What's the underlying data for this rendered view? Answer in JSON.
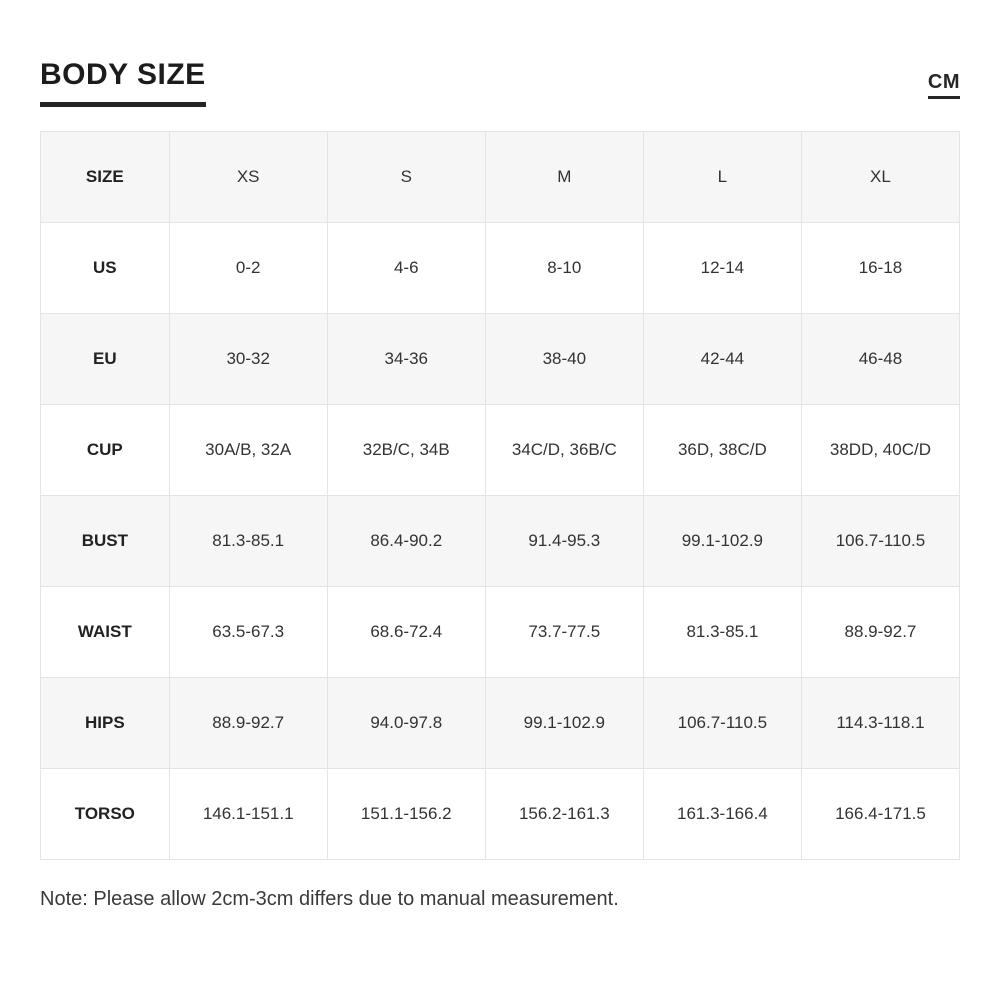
{
  "page": {
    "title": "BODY SIZE",
    "unit_label": "CM",
    "note": "Note: Please allow 2cm-3cm differs due to manual measurement."
  },
  "colors": {
    "stripe_row_background": "#f6f6f6",
    "cell_border": "#e4e4e4",
    "title_text": "#1c1c1c",
    "body_text": "#333333"
  },
  "chart_data": {
    "type": "table",
    "title": "BODY SIZE",
    "unit": "CM",
    "columns": [
      "SIZE",
      "XS",
      "S",
      "M",
      "L",
      "XL"
    ],
    "rows": [
      {
        "label": "US",
        "values": [
          "0-2",
          "4-6",
          "8-10",
          "12-14",
          "16-18"
        ]
      },
      {
        "label": "EU",
        "values": [
          "30-32",
          "34-36",
          "38-40",
          "42-44",
          "46-48"
        ]
      },
      {
        "label": "CUP",
        "values": [
          "30A/B, 32A",
          "32B/C, 34B",
          "34C/D, 36B/C",
          "36D, 38C/D",
          "38DD, 40C/D"
        ]
      },
      {
        "label": "BUST",
        "values": [
          "81.3-85.1",
          "86.4-90.2",
          "91.4-95.3",
          "99.1-102.9",
          "106.7-110.5"
        ]
      },
      {
        "label": "WAIST",
        "values": [
          "63.5-67.3",
          "68.6-72.4",
          "73.7-77.5",
          "81.3-85.1",
          "88.9-92.7"
        ]
      },
      {
        "label": "HIPS",
        "values": [
          "88.9-92.7",
          "94.0-97.8",
          "99.1-102.9",
          "106.7-110.5",
          "114.3-118.1"
        ]
      },
      {
        "label": "TORSO",
        "values": [
          "146.1-151.1",
          "151.1-156.2",
          "156.2-161.3",
          "161.3-166.4",
          "166.4-171.5"
        ]
      }
    ],
    "note": "Note: Please allow 2cm-3cm differs due to manual measurement.",
    "layout_hints": {
      "header_row_striped": true,
      "alternating_row_stripes": true,
      "first_column_bold": true
    }
  }
}
